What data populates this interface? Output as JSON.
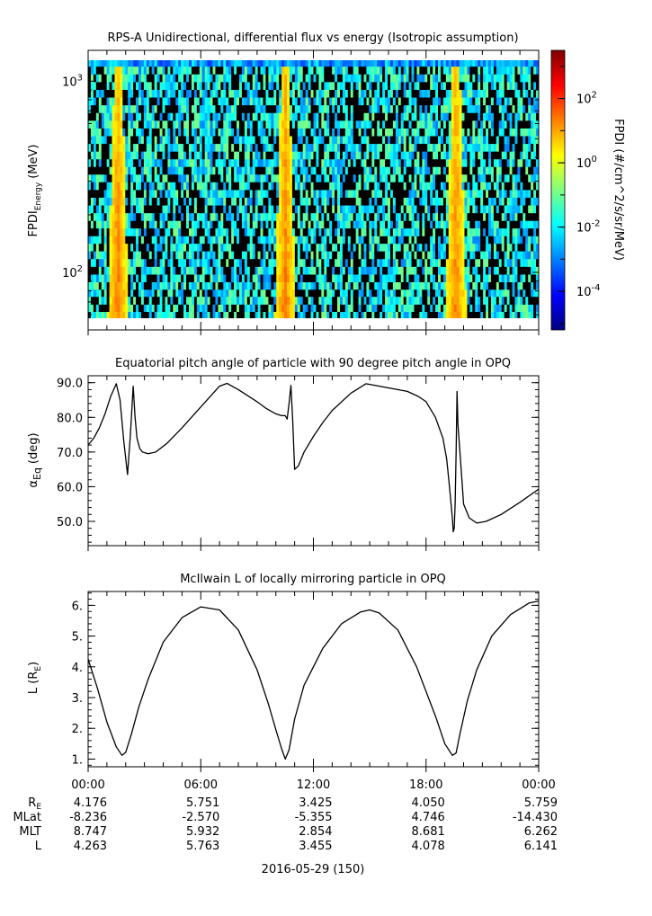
{
  "figure": {
    "date_label": "2016-05-29 (150)",
    "ephemeris": {
      "times": [
        "00:00",
        "06:00",
        "12:00",
        "18:00",
        "00:00"
      ],
      "rows": [
        {
          "label": "R",
          "label_sub": "E",
          "values": [
            "4.176",
            "5.751",
            "3.425",
            "4.050",
            "5.759"
          ]
        },
        {
          "label": "MLat",
          "label_sub": "",
          "values": [
            "-8.236",
            "-2.570",
            "-5.355",
            "4.746",
            "-14.430"
          ]
        },
        {
          "label": "MLT",
          "label_sub": "",
          "values": [
            "8.747",
            "5.932",
            "2.854",
            "8.681",
            "6.262"
          ]
        },
        {
          "label": "L",
          "label_sub": "",
          "values": [
            "4.263",
            "5.763",
            "3.455",
            "4.078",
            "6.141"
          ]
        }
      ]
    }
  },
  "chart_data": [
    {
      "type": "heatmap",
      "title": "RPS-A Unidirectional, differential flux vs energy (Isotropic assumption)",
      "ylabel": {
        "main": "FPDI",
        "sub": "Energy",
        "unit": "(MeV)"
      },
      "yscale": "log",
      "ylim": [
        50,
        1450
      ],
      "yticks": [
        {
          "value": 100,
          "base": "10",
          "exp": "2"
        },
        {
          "value": 1000,
          "base": "10",
          "exp": "3"
        }
      ],
      "xlim_hours": [
        0,
        24
      ],
      "energy_bins_mev": [
        60,
        65,
        71,
        78,
        85,
        93,
        102,
        112,
        123,
        135,
        148,
        162,
        178,
        195,
        214,
        235,
        258,
        283,
        311,
        341,
        374,
        410,
        450,
        494,
        542,
        595,
        653,
        717,
        787,
        864,
        948,
        1041,
        1143,
        1255,
        1350
      ],
      "flux_peaks_hours": [
        1.6,
        10.5,
        19.6
      ],
      "colorbar": {
        "label": "FPDI (#/cm^2/s/sr/MeV)",
        "scale": "log",
        "range_log10": [
          -5.2,
          3.5
        ],
        "ticks": [
          {
            "base": "10",
            "exp": "2",
            "log": 2
          },
          {
            "base": "10",
            "exp": "0",
            "log": 0
          },
          {
            "base": "10",
            "exp": "-2",
            "log": -2
          },
          {
            "base": "10",
            "exp": "-4",
            "log": -4
          }
        ],
        "colors": [
          "#00007f",
          "#0000ff",
          "#007fff",
          "#00ffff",
          "#7fff7f",
          "#ffff00",
          "#ff7f00",
          "#ff0000",
          "#7f0000"
        ]
      }
    },
    {
      "type": "line",
      "title": "Equatorial pitch angle of particle with 90 degree pitch angle in OPQ",
      "ylabel": {
        "main": "α",
        "sub": "Eq",
        "unit": "(deg)"
      },
      "ylim": [
        43,
        92
      ],
      "yticks": [
        50,
        60,
        70,
        80,
        90
      ],
      "xlim_hours": [
        0,
        24
      ],
      "x_hours": [
        0,
        0.3,
        0.6,
        0.9,
        1.2,
        1.5,
        1.7,
        1.9,
        2.1,
        2.25,
        2.4,
        2.5,
        2.6,
        2.75,
        2.9,
        3.2,
        3.6,
        4.2,
        5,
        6,
        7,
        7.4,
        8,
        9,
        9.5,
        10,
        10.3,
        10.5,
        10.6,
        10.7,
        10.8,
        10.9,
        11.0,
        11.2,
        11.5,
        12,
        12.5,
        13,
        14,
        14.8,
        15,
        16,
        17,
        17.6,
        18,
        18.5,
        18.9,
        19.1,
        19.25,
        19.4,
        19.45,
        19.5,
        19.55,
        19.6,
        19.65,
        19.7,
        19.8,
        20,
        20.3,
        20.7,
        21.2,
        22,
        23,
        24
      ],
      "y_deg": [
        72,
        74,
        77,
        81,
        86,
        89.7,
        85,
        73,
        63.5,
        75,
        89,
        80,
        74,
        71,
        70,
        69.5,
        70,
        72.5,
        77,
        83,
        89,
        89.8,
        88,
        84.5,
        82.5,
        81,
        80.5,
        80.5,
        79.5,
        84,
        89.2,
        79,
        65,
        66,
        70,
        74.5,
        78.5,
        82,
        87,
        89.7,
        89.5,
        88.5,
        87.5,
        86,
        84.5,
        80,
        74,
        68,
        60,
        51,
        47,
        48,
        55,
        70,
        87.5,
        78,
        70.5,
        55,
        51,
        49.5,
        50,
        52,
        55.5,
        59.3
      ]
    },
    {
      "type": "line",
      "title": "McIlwain L of locally mirroring particle in OPQ",
      "ylabel": {
        "main": "L (R",
        "sub": "E",
        "unit": ")"
      },
      "ylim": [
        0.75,
        6.45
      ],
      "yticks": [
        1,
        2,
        3,
        4,
        5,
        6
      ],
      "xlim_hours": [
        0,
        24
      ],
      "x_hours": [
        0,
        0.5,
        1.0,
        1.5,
        1.8,
        2.0,
        2.3,
        2.7,
        3.2,
        4.0,
        5.0,
        6.0,
        7.0,
        8.0,
        9.0,
        9.6,
        10.0,
        10.3,
        10.5,
        10.7,
        11.0,
        11.5,
        12.5,
        13.5,
        14.5,
        15.0,
        15.5,
        16.5,
        17.5,
        18.5,
        19.0,
        19.4,
        19.6,
        19.8,
        20.2,
        20.7,
        21.5,
        22.5,
        23.5,
        24.0
      ],
      "y_L": [
        4.25,
        3.3,
        2.2,
        1.4,
        1.12,
        1.22,
        1.8,
        2.7,
        3.6,
        4.8,
        5.6,
        5.95,
        5.85,
        5.2,
        3.9,
        2.8,
        1.95,
        1.35,
        1.0,
        1.3,
        2.3,
        3.4,
        4.6,
        5.4,
        5.78,
        5.85,
        5.75,
        5.2,
        4.0,
        2.4,
        1.5,
        1.12,
        1.2,
        1.8,
        2.9,
        3.9,
        5.0,
        5.7,
        6.08,
        6.14
      ]
    }
  ]
}
